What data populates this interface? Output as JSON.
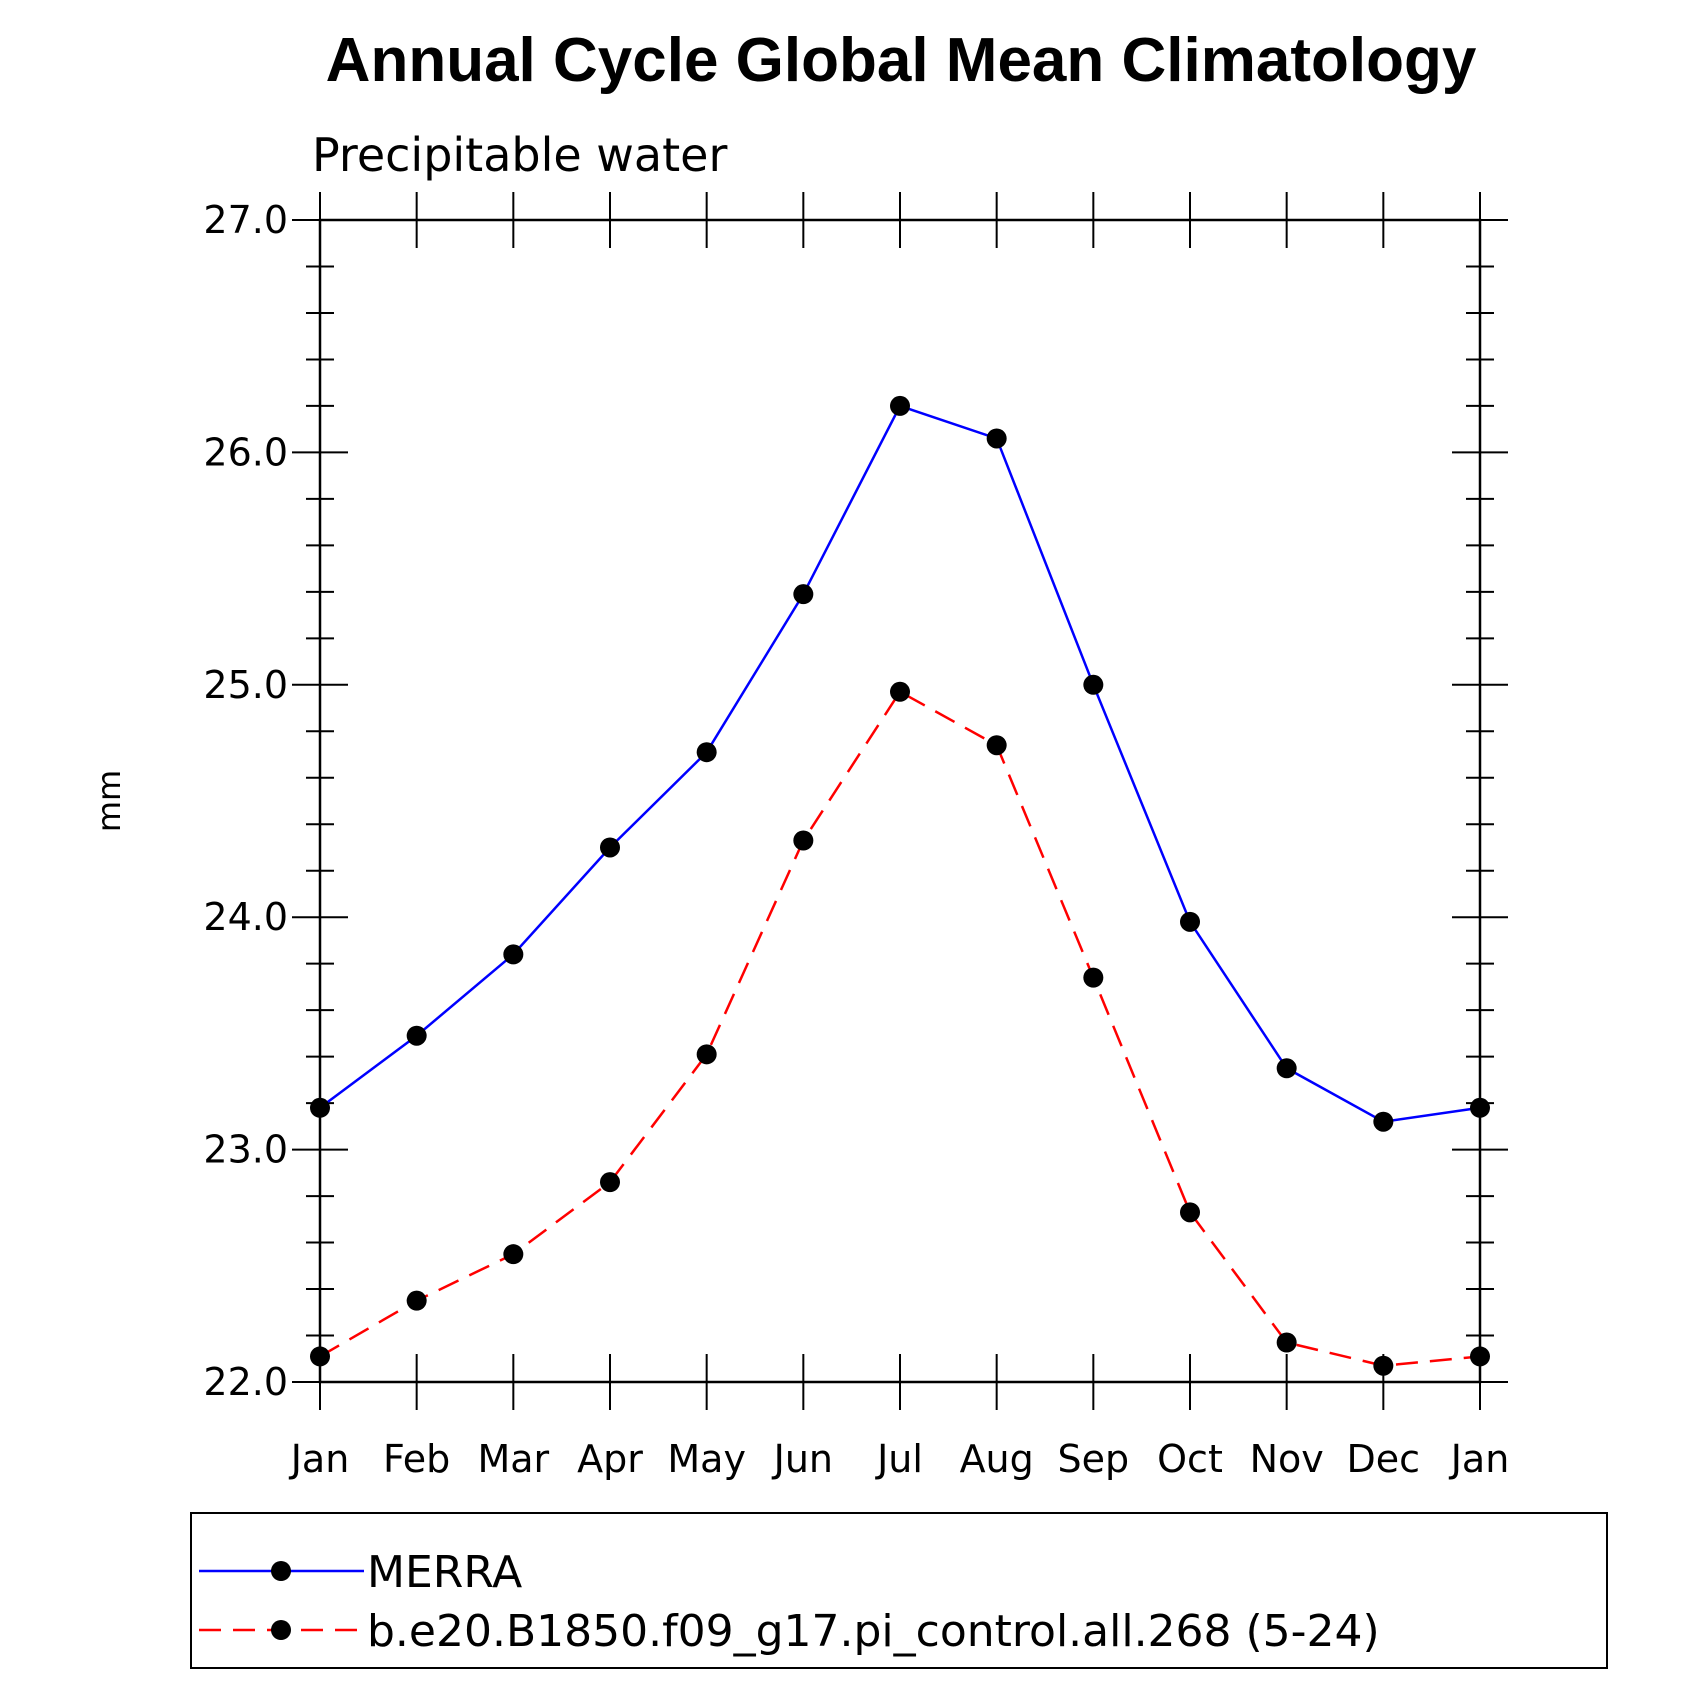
{
  "chart_data": {
    "type": "line",
    "title": "Annual Cycle Global Mean Climatology",
    "subtitle": "Precipitable water",
    "xlabel": "",
    "ylabel": "mm",
    "ylim": [
      22.0,
      27.0
    ],
    "yticks": [
      "22.0",
      "23.0",
      "24.0",
      "25.0",
      "26.0",
      "27.0"
    ],
    "categories": [
      "Jan",
      "Feb",
      "Mar",
      "Apr",
      "May",
      "Jun",
      "Jul",
      "Aug",
      "Sep",
      "Oct",
      "Nov",
      "Dec",
      "Jan"
    ],
    "grid": false,
    "legend_position": "bottom",
    "series": [
      {
        "name": "MERRA",
        "color": "#0000ff",
        "dash": "solid",
        "values": [
          23.18,
          23.49,
          23.84,
          24.3,
          24.71,
          25.39,
          26.2,
          26.06,
          25.0,
          23.98,
          23.35,
          23.12,
          23.18
        ]
      },
      {
        "name": "b.e20.B1850.f09_g17.pi_control.all.268 (5-24)",
        "color": "#ff0000",
        "dash": "dashed",
        "values": [
          22.11,
          22.35,
          22.55,
          22.86,
          23.41,
          24.33,
          24.97,
          24.74,
          23.74,
          22.73,
          22.17,
          22.07,
          22.11
        ]
      }
    ]
  }
}
